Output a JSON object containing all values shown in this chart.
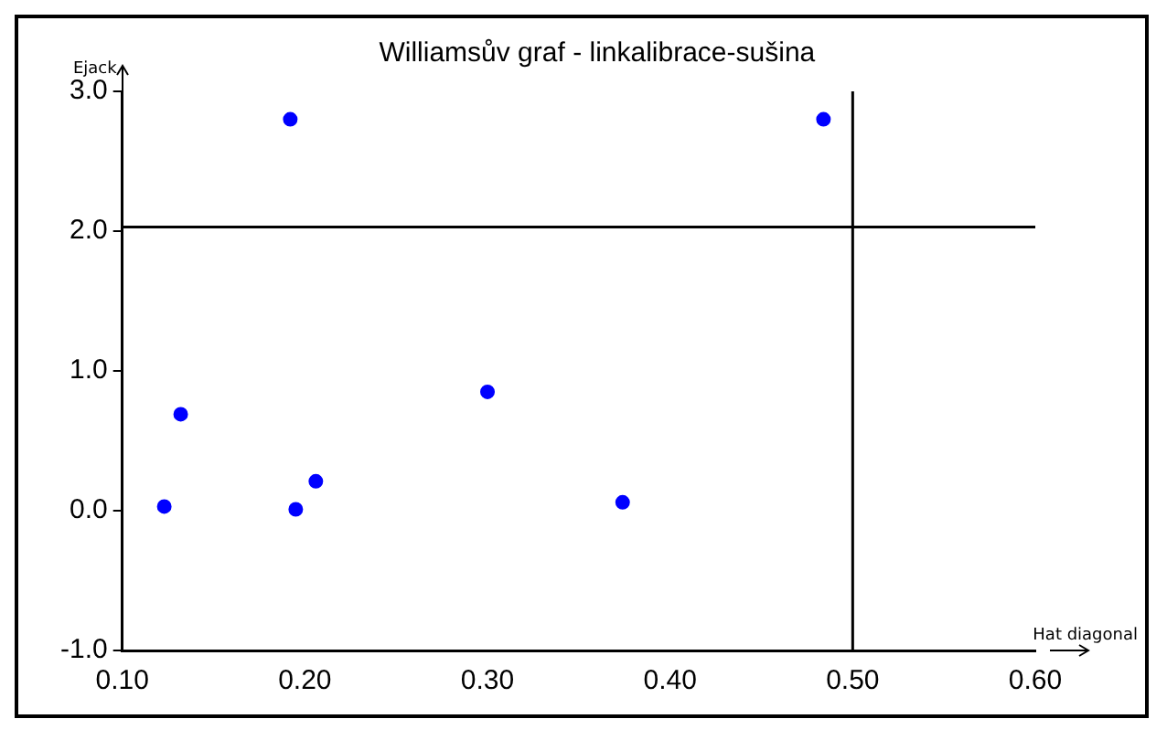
{
  "chart_data": {
    "type": "scatter",
    "title": "Williamsův graf - linkalibrace-sušina",
    "xlabel": "Hat diagonal",
    "ylabel": "Ejack",
    "x": [
      0.123,
      0.132,
      0.195,
      0.206,
      0.3,
      0.374,
      0.192,
      0.484
    ],
    "series": [
      {
        "color": "#0000ff",
        "values": [
          0.03,
          0.69,
          0.01,
          0.21,
          0.85,
          0.06,
          2.8,
          2.8
        ]
      }
    ],
    "xlim": [
      0.1,
      0.6
    ],
    "xticks": [
      {
        "value": 0.1,
        "label": "0.10"
      },
      {
        "value": 0.2,
        "label": "0.20"
      },
      {
        "value": 0.3,
        "label": "0.30"
      },
      {
        "value": 0.4,
        "label": "0.40"
      },
      {
        "value": 0.5,
        "label": "0.50"
      },
      {
        "value": 0.6,
        "label": "0.60"
      }
    ],
    "ylim": [
      -1,
      3
    ],
    "yticks": [
      {
        "value": -1,
        "label": "-1.0"
      },
      {
        "value": 0,
        "label": "0.0"
      },
      {
        "value": 1,
        "label": "1.0"
      },
      {
        "value": 2,
        "label": "2.0"
      },
      {
        "value": 3,
        "label": "3.0"
      }
    ],
    "ref_lines": [
      {
        "axis": "y",
        "value": 2.03,
        "color": "#000000"
      },
      {
        "axis": "x",
        "value": 0.5,
        "color": "#000000"
      }
    ],
    "grid": false,
    "legend": false,
    "marker": "circle"
  }
}
